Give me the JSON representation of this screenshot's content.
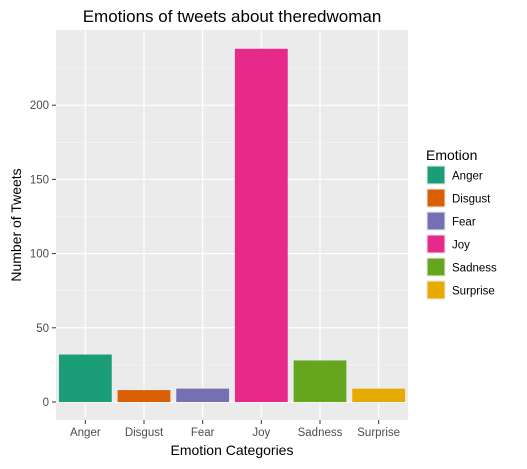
{
  "chart_data": {
    "type": "bar",
    "title": "Emotions of tweets about theredwoman",
    "xlabel": "Emotion Categories",
    "ylabel": "Number of Tweets",
    "categories": [
      "Anger",
      "Disgust",
      "Fear",
      "Joy",
      "Sadness",
      "Surprise"
    ],
    "values": [
      32,
      8,
      9,
      238,
      28,
      9
    ],
    "colors": [
      "#1b9e77",
      "#d95f02",
      "#7570b3",
      "#e7298a",
      "#66a61e",
      "#e6ab02"
    ],
    "ylim": [
      0,
      250
    ],
    "yticks": [
      0,
      50,
      100,
      150,
      200
    ],
    "grid": true,
    "legend": {
      "title": "Emotion",
      "position": "right",
      "entries": [
        "Anger",
        "Disgust",
        "Fear",
        "Joy",
        "Sadness",
        "Surprise"
      ]
    }
  }
}
